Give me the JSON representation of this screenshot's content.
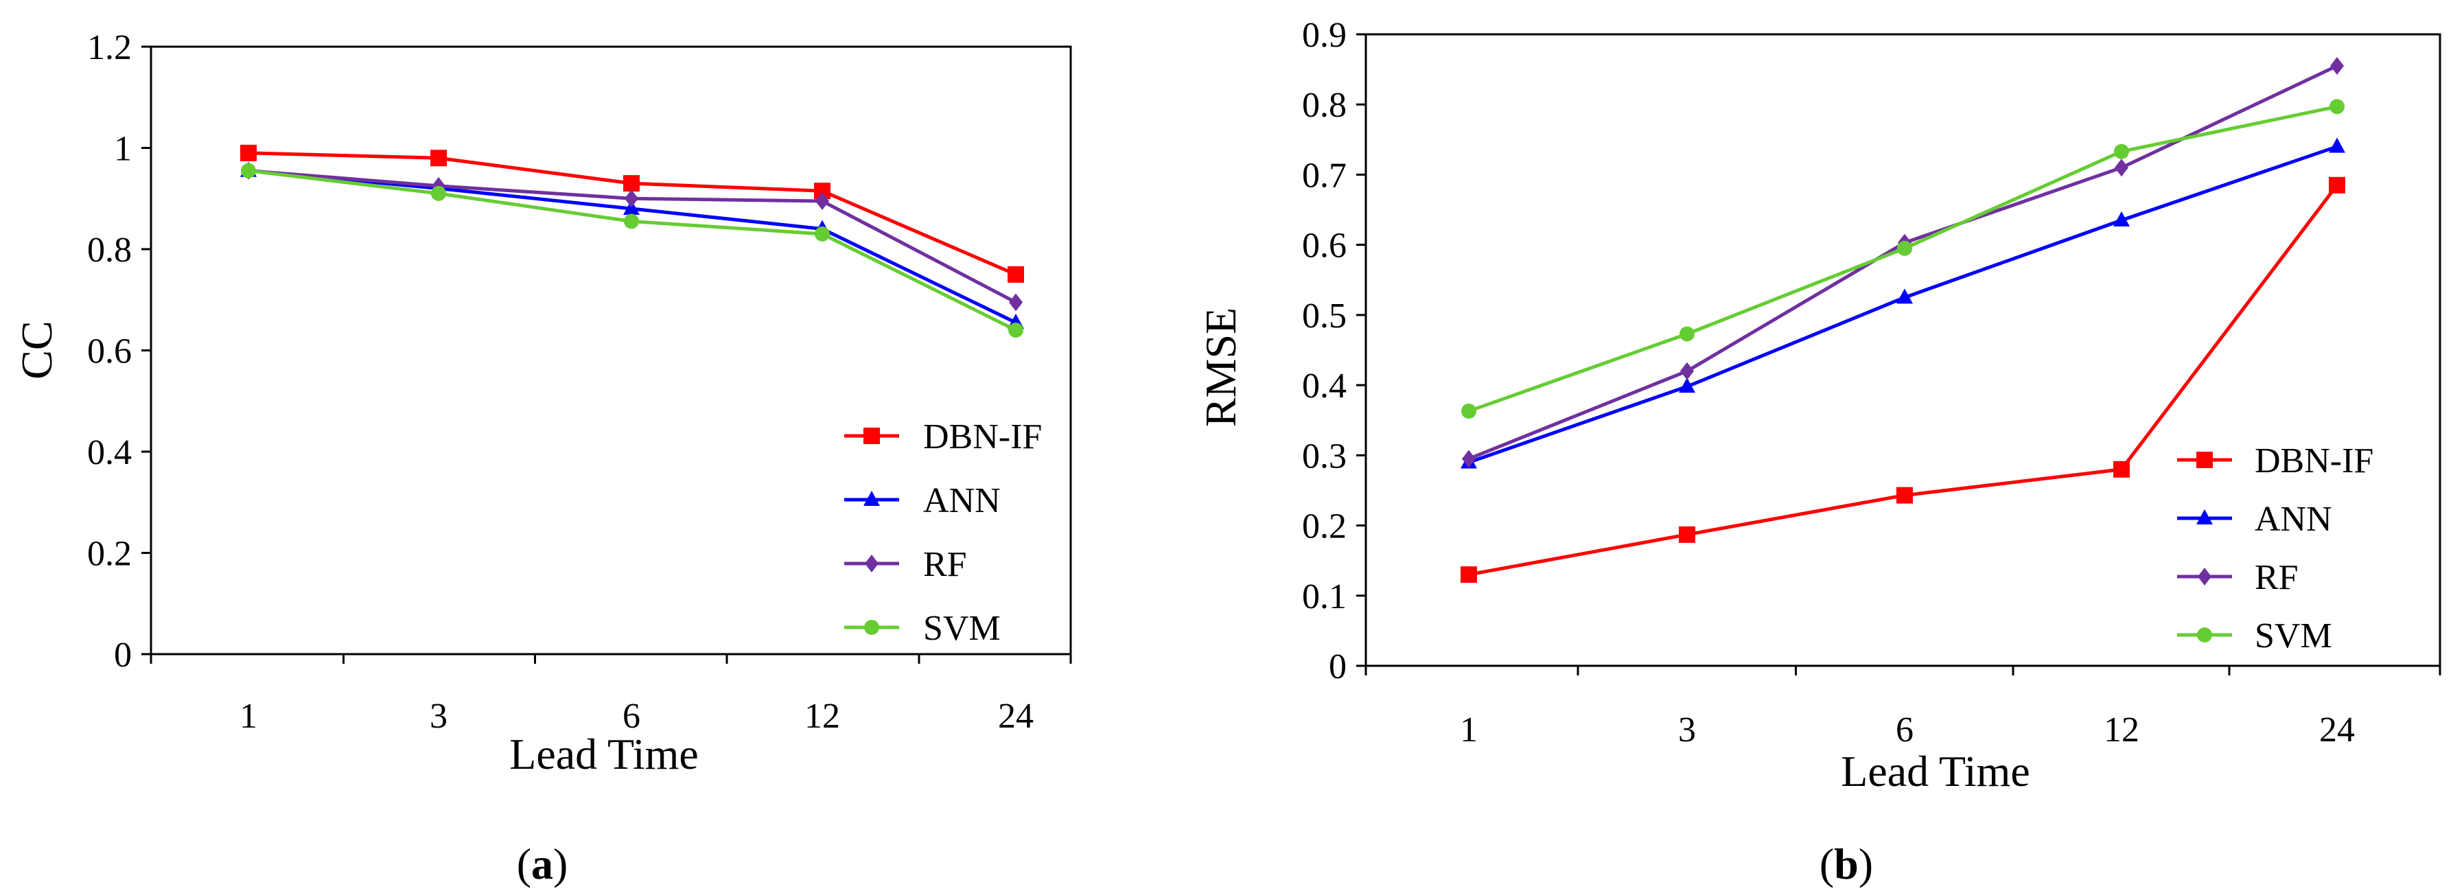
{
  "chart_data": [
    {
      "id": "a",
      "type": "line",
      "panel_label": {
        "open": "(",
        "letter": "a",
        "close": ")"
      },
      "categories": [
        "1",
        "3",
        "6",
        "12",
        "24"
      ],
      "xlabel": "Lead Time",
      "ylabel": "CC",
      "ylim": [
        0,
        1.2
      ],
      "yticks": [
        "0",
        "0.2",
        "0.4",
        "0.6",
        "0.8",
        "1",
        "1.2"
      ],
      "grid": false,
      "legend_position": "bottom-right",
      "series": [
        {
          "name": "DBN-IF",
          "color": "#ff0000",
          "marker": "square",
          "values": [
            0.99,
            0.98,
            0.93,
            0.915,
            0.75
          ]
        },
        {
          "name": "ANN",
          "color": "#0000ff",
          "marker": "triangle",
          "values": [
            0.955,
            0.92,
            0.88,
            0.84,
            0.655
          ]
        },
        {
          "name": "RF",
          "color": "#7030a0",
          "marker": "diamond",
          "values": [
            0.955,
            0.925,
            0.9,
            0.895,
            0.695
          ]
        },
        {
          "name": "SVM",
          "color": "#66cc33",
          "marker": "circle",
          "values": [
            0.955,
            0.91,
            0.855,
            0.83,
            0.64
          ]
        }
      ]
    },
    {
      "id": "b",
      "type": "line",
      "panel_label": {
        "open": "(",
        "letter": "b",
        "close": ")"
      },
      "categories": [
        "1",
        "3",
        "6",
        "12",
        "24"
      ],
      "xlabel": "Lead Time",
      "ylabel": "RMSE",
      "ylim": [
        0,
        0.9
      ],
      "yticks": [
        "0",
        "0.1",
        "0.2",
        "0.3",
        "0.4",
        "0.5",
        "0.6",
        "0.7",
        "0.8",
        "0.9"
      ],
      "grid": false,
      "legend_position": "bottom-right",
      "series": [
        {
          "name": "DBN-IF",
          "color": "#ff0000",
          "marker": "square",
          "values": [
            0.13,
            0.187,
            0.243,
            0.28,
            0.685
          ]
        },
        {
          "name": "ANN",
          "color": "#0000ff",
          "marker": "triangle",
          "values": [
            0.29,
            0.398,
            0.525,
            0.635,
            0.74
          ]
        },
        {
          "name": "RF",
          "color": "#7030a0",
          "marker": "diamond",
          "values": [
            0.295,
            0.42,
            0.603,
            0.71,
            0.855
          ]
        },
        {
          "name": "SVM",
          "color": "#66cc33",
          "marker": "circle",
          "values": [
            0.363,
            0.473,
            0.595,
            0.733,
            0.797
          ]
        }
      ]
    }
  ]
}
